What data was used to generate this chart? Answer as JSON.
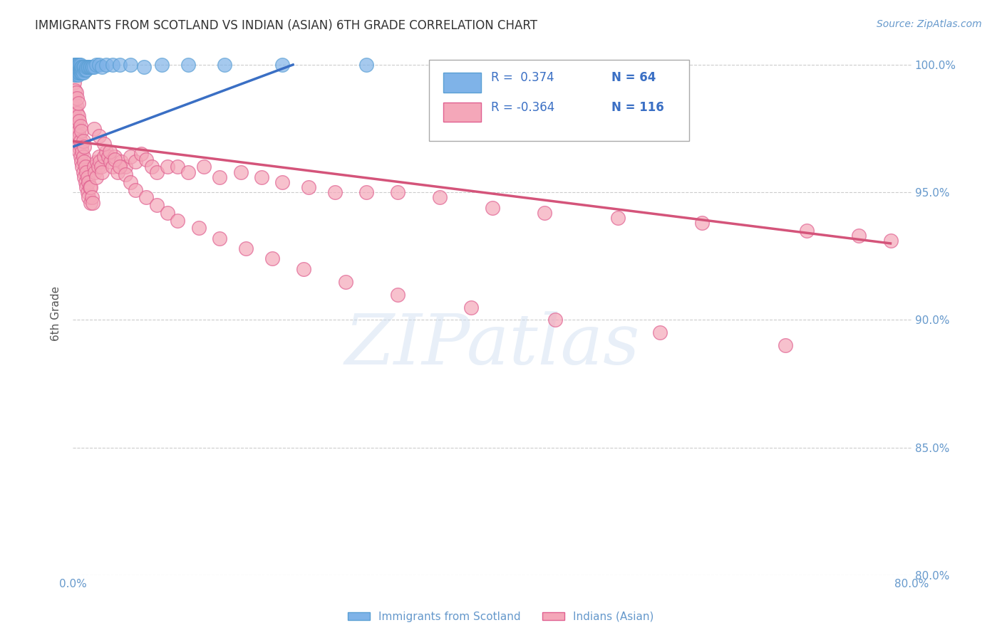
{
  "title": "IMMIGRANTS FROM SCOTLAND VS INDIAN (ASIAN) 6TH GRADE CORRELATION CHART",
  "source": "Source: ZipAtlas.com",
  "ylabel": "6th Grade",
  "watermark": "ZIPatlas",
  "xlim": [
    0.0,
    0.8
  ],
  "ylim": [
    0.8,
    1.005
  ],
  "xticks": [
    0.0,
    0.1,
    0.2,
    0.3,
    0.4,
    0.5,
    0.6,
    0.7,
    0.8
  ],
  "xticklabels": [
    "0.0%",
    "",
    "",
    "",
    "",
    "",
    "",
    "",
    "80.0%"
  ],
  "yticks": [
    0.8,
    0.85,
    0.9,
    0.95,
    1.0
  ],
  "yticklabels": [
    "80.0%",
    "85.0%",
    "90.0%",
    "95.0%",
    "100.0%"
  ],
  "scotland_color": "#7fb3e8",
  "scotland_edge": "#5a9fd4",
  "indian_color": "#f4a7b9",
  "indian_edge": "#e06090",
  "trendline_scotland_color": "#3a6fc4",
  "trendline_indian_color": "#d4547a",
  "legend_R_scotland": "R =  0.374",
  "legend_N_scotland": "N = 64",
  "legend_R_indian": "R = -0.364",
  "legend_N_indian": "N = 116",
  "scotland_x": [
    0.001,
    0.001,
    0.001,
    0.002,
    0.002,
    0.002,
    0.002,
    0.002,
    0.003,
    0.003,
    0.003,
    0.003,
    0.003,
    0.003,
    0.004,
    0.004,
    0.004,
    0.004,
    0.005,
    0.005,
    0.005,
    0.005,
    0.005,
    0.006,
    0.006,
    0.006,
    0.006,
    0.007,
    0.007,
    0.007,
    0.007,
    0.008,
    0.008,
    0.008,
    0.009,
    0.009,
    0.009,
    0.01,
    0.01,
    0.011,
    0.011,
    0.012,
    0.013,
    0.013,
    0.014,
    0.015,
    0.016,
    0.017,
    0.018,
    0.019,
    0.02,
    0.022,
    0.025,
    0.028,
    0.032,
    0.038,
    0.045,
    0.055,
    0.068,
    0.085,
    0.11,
    0.145,
    0.2,
    0.28
  ],
  "scotland_y": [
    0.998,
    0.999,
    1.0,
    0.996,
    0.997,
    0.998,
    0.999,
    1.0,
    0.996,
    0.997,
    0.998,
    0.999,
    1.0,
    1.0,
    0.997,
    0.998,
    0.999,
    1.0,
    0.996,
    0.997,
    0.998,
    0.999,
    1.0,
    0.997,
    0.998,
    0.999,
    1.0,
    0.997,
    0.998,
    0.999,
    1.0,
    0.997,
    0.998,
    0.999,
    0.997,
    0.998,
    0.999,
    0.997,
    0.999,
    0.998,
    0.999,
    0.998,
    0.998,
    0.999,
    0.999,
    0.999,
    0.999,
    0.999,
    0.999,
    0.999,
    0.999,
    1.0,
    1.0,
    0.999,
    1.0,
    1.0,
    1.0,
    1.0,
    0.999,
    1.0,
    1.0,
    1.0,
    1.0,
    1.0
  ],
  "india_trendline_x": [
    0.001,
    0.78
  ],
  "india_trendline_y": [
    0.97,
    0.93
  ],
  "scotland_trendline_x": [
    0.001,
    0.21
  ],
  "scotland_trendline_y": [
    0.968,
    1.0
  ],
  "indian_x": [
    0.001,
    0.001,
    0.001,
    0.002,
    0.002,
    0.002,
    0.002,
    0.003,
    0.003,
    0.003,
    0.003,
    0.004,
    0.004,
    0.004,
    0.004,
    0.005,
    0.005,
    0.005,
    0.005,
    0.006,
    0.006,
    0.006,
    0.007,
    0.007,
    0.007,
    0.008,
    0.008,
    0.008,
    0.009,
    0.009,
    0.01,
    0.01,
    0.01,
    0.011,
    0.011,
    0.011,
    0.012,
    0.012,
    0.013,
    0.013,
    0.014,
    0.014,
    0.015,
    0.015,
    0.016,
    0.017,
    0.017,
    0.018,
    0.019,
    0.02,
    0.021,
    0.022,
    0.023,
    0.024,
    0.025,
    0.026,
    0.027,
    0.028,
    0.03,
    0.032,
    0.034,
    0.036,
    0.038,
    0.04,
    0.043,
    0.046,
    0.05,
    0.055,
    0.06,
    0.065,
    0.07,
    0.075,
    0.08,
    0.09,
    0.1,
    0.11,
    0.125,
    0.14,
    0.16,
    0.18,
    0.2,
    0.225,
    0.25,
    0.28,
    0.31,
    0.35,
    0.4,
    0.45,
    0.52,
    0.6,
    0.7,
    0.75,
    0.78,
    0.02,
    0.025,
    0.03,
    0.035,
    0.04,
    0.045,
    0.05,
    0.055,
    0.06,
    0.07,
    0.08,
    0.09,
    0.1,
    0.12,
    0.14,
    0.165,
    0.19,
    0.22,
    0.26,
    0.31,
    0.38,
    0.46,
    0.56,
    0.68
  ],
  "indian_y": [
    0.98,
    0.987,
    0.993,
    0.975,
    0.98,
    0.983,
    0.99,
    0.973,
    0.978,
    0.984,
    0.989,
    0.97,
    0.976,
    0.981,
    0.987,
    0.968,
    0.974,
    0.98,
    0.985,
    0.966,
    0.972,
    0.978,
    0.964,
    0.97,
    0.976,
    0.962,
    0.968,
    0.974,
    0.96,
    0.966,
    0.958,
    0.964,
    0.97,
    0.956,
    0.962,
    0.968,
    0.954,
    0.96,
    0.952,
    0.958,
    0.95,
    0.956,
    0.948,
    0.954,
    0.952,
    0.946,
    0.952,
    0.948,
    0.946,
    0.96,
    0.958,
    0.956,
    0.962,
    0.96,
    0.964,
    0.962,
    0.96,
    0.958,
    0.964,
    0.966,
    0.964,
    0.962,
    0.96,
    0.964,
    0.958,
    0.962,
    0.96,
    0.964,
    0.962,
    0.965,
    0.963,
    0.96,
    0.958,
    0.96,
    0.96,
    0.958,
    0.96,
    0.956,
    0.958,
    0.956,
    0.954,
    0.952,
    0.95,
    0.95,
    0.95,
    0.948,
    0.944,
    0.942,
    0.94,
    0.938,
    0.935,
    0.933,
    0.931,
    0.975,
    0.972,
    0.969,
    0.966,
    0.963,
    0.96,
    0.957,
    0.954,
    0.951,
    0.948,
    0.945,
    0.942,
    0.939,
    0.936,
    0.932,
    0.928,
    0.924,
    0.92,
    0.915,
    0.91,
    0.905,
    0.9,
    0.895,
    0.89
  ],
  "background_color": "#ffffff",
  "grid_color": "#cccccc",
  "title_color": "#333333",
  "axis_label_color": "#555555",
  "tick_color": "#6699cc",
  "right_ytick_color": "#6699cc"
}
